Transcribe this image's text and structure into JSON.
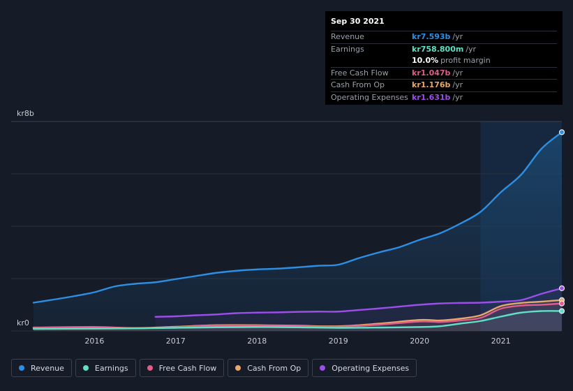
{
  "tooltip": {
    "date": "Sep 30 2021",
    "rows": [
      {
        "label": "Revenue",
        "value": "kr7.593b",
        "unit": "/yr",
        "color": "#2d8fe3"
      },
      {
        "label": "Earnings",
        "value": "kr758.800m",
        "unit": "/yr",
        "color": "#5fe0c6"
      },
      {
        "label": "",
        "value": "10.0%",
        "unit": "profit margin",
        "color": "#ffffff"
      },
      {
        "label": "Free Cash Flow",
        "value": "kr1.047b",
        "unit": "/yr",
        "color": "#e05c8a"
      },
      {
        "label": "Cash From Op",
        "value": "kr1.176b",
        "unit": "/yr",
        "color": "#e8a86a"
      },
      {
        "label": "Operating Expenses",
        "value": "kr1.631b",
        "unit": "/yr",
        "color": "#9b4ee8"
      }
    ]
  },
  "legend": [
    {
      "label": "Revenue",
      "color": "#2d8fe3"
    },
    {
      "label": "Earnings",
      "color": "#5fe0c6"
    },
    {
      "label": "Free Cash Flow",
      "color": "#e05c8a"
    },
    {
      "label": "Cash From Op",
      "color": "#e8a86a"
    },
    {
      "label": "Operating Expenses",
      "color": "#9b4ee8"
    }
  ],
  "chart_data": {
    "type": "line",
    "title": "",
    "xlabel": "",
    "ylabel": "",
    "ylim": [
      0,
      8
    ],
    "y_unit": "kr b",
    "y_tick_labels": [
      {
        "value": 8,
        "label": "kr8b"
      },
      {
        "value": 0,
        "label": "kr0"
      }
    ],
    "y_gridlines": [
      0,
      2,
      4,
      6,
      8
    ],
    "xlim": [
      2015.25,
      2021.75
    ],
    "x_ticks": [
      2016,
      2017,
      2018,
      2019,
      2020,
      2021
    ],
    "x_tick_labels": [
      "2016",
      "2017",
      "2018",
      "2019",
      "2020",
      "2021"
    ],
    "highlight_range": [
      2020.75,
      2021.75
    ],
    "series": [
      {
        "name": "Revenue",
        "color": "#2d8fe3",
        "area": true,
        "x": [
          2015.25,
          2015.5,
          2015.75,
          2016.0,
          2016.25,
          2016.5,
          2016.75,
          2017.0,
          2017.25,
          2017.5,
          2017.75,
          2018.0,
          2018.25,
          2018.5,
          2018.75,
          2019.0,
          2019.25,
          2019.5,
          2019.75,
          2020.0,
          2020.25,
          2020.5,
          2020.75,
          2021.0,
          2021.25,
          2021.5,
          2021.75
        ],
        "values": [
          1.08,
          1.2,
          1.33,
          1.48,
          1.7,
          1.8,
          1.86,
          1.98,
          2.1,
          2.22,
          2.3,
          2.35,
          2.38,
          2.43,
          2.49,
          2.53,
          2.78,
          3.0,
          3.2,
          3.48,
          3.73,
          4.1,
          4.55,
          5.3,
          5.97,
          6.96,
          7.59
        ]
      },
      {
        "name": "Earnings",
        "color": "#5fe0c6",
        "area": false,
        "x": [
          2015.25,
          2016.0,
          2016.5,
          2017.0,
          2017.5,
          2018.0,
          2018.5,
          2019.0,
          2019.5,
          2020.0,
          2020.25,
          2020.5,
          2020.75,
          2021.0,
          2021.25,
          2021.5,
          2021.75
        ],
        "values": [
          0.08,
          0.09,
          0.1,
          0.12,
          0.14,
          0.15,
          0.14,
          0.12,
          0.13,
          0.15,
          0.18,
          0.28,
          0.38,
          0.55,
          0.7,
          0.76,
          0.76
        ]
      },
      {
        "name": "Free Cash Flow",
        "color": "#e05c8a",
        "area": false,
        "x": [
          2015.25,
          2016.0,
          2016.5,
          2017.0,
          2017.5,
          2018.0,
          2018.5,
          2019.0,
          2019.5,
          2020.0,
          2020.25,
          2020.5,
          2020.75,
          2021.0,
          2021.25,
          2021.5,
          2021.75
        ],
        "values": [
          0.12,
          0.14,
          0.1,
          0.14,
          0.2,
          0.2,
          0.18,
          0.16,
          0.24,
          0.36,
          0.34,
          0.4,
          0.5,
          0.85,
          0.97,
          1.0,
          1.05
        ]
      },
      {
        "name": "Cash From Op",
        "color": "#e8a86a",
        "area": false,
        "x": [
          2015.25,
          2016.0,
          2016.5,
          2017.0,
          2017.5,
          2018.0,
          2018.5,
          2019.0,
          2019.5,
          2020.0,
          2020.25,
          2020.5,
          2020.75,
          2021.0,
          2021.25,
          2021.5,
          2021.75
        ],
        "values": [
          0.13,
          0.15,
          0.11,
          0.16,
          0.22,
          0.22,
          0.2,
          0.18,
          0.28,
          0.42,
          0.4,
          0.47,
          0.6,
          0.95,
          1.07,
          1.12,
          1.18
        ]
      },
      {
        "name": "Operating Expenses",
        "color": "#9b4ee8",
        "area": false,
        "x": [
          2016.75,
          2017.0,
          2017.25,
          2017.5,
          2017.75,
          2018.0,
          2018.25,
          2018.5,
          2018.75,
          2019.0,
          2019.25,
          2019.5,
          2019.75,
          2020.0,
          2020.25,
          2020.5,
          2020.75,
          2021.0,
          2021.25,
          2021.5,
          2021.75
        ],
        "values": [
          0.54,
          0.56,
          0.6,
          0.63,
          0.68,
          0.7,
          0.71,
          0.73,
          0.74,
          0.74,
          0.8,
          0.86,
          0.93,
          1.0,
          1.05,
          1.07,
          1.08,
          1.12,
          1.18,
          1.42,
          1.63
        ]
      }
    ]
  }
}
